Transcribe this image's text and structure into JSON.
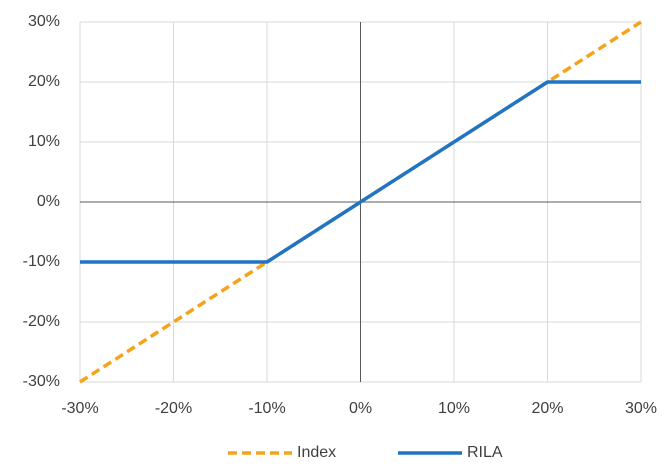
{
  "chart_data": {
    "type": "line",
    "x": [
      -30,
      -10,
      0,
      20,
      30
    ],
    "series": [
      {
        "name": "Index",
        "color": "#f5a31a",
        "dash": true,
        "values": [
          -30,
          -10,
          0,
          20,
          30
        ]
      },
      {
        "name": "RILA",
        "color": "#1f74c4",
        "dash": false,
        "values": [
          -10,
          -10,
          0,
          20,
          20
        ]
      }
    ],
    "xlim": [
      -30,
      30
    ],
    "ylim": [
      -30,
      30
    ],
    "xticks": [
      {
        "value": -30,
        "label": "-30%"
      },
      {
        "value": -20,
        "label": "-20%"
      },
      {
        "value": -10,
        "label": "-10%"
      },
      {
        "value": 0,
        "label": "0%"
      },
      {
        "value": 10,
        "label": "10%"
      },
      {
        "value": 20,
        "label": "20%"
      },
      {
        "value": 30,
        "label": "30%"
      }
    ],
    "yticks": [
      {
        "value": -30,
        "label": "-30%"
      },
      {
        "value": -20,
        "label": "-20%"
      },
      {
        "value": -10,
        "label": "-10%"
      },
      {
        "value": 0,
        "label": "0%"
      },
      {
        "value": 10,
        "label": "10%"
      },
      {
        "value": 20,
        "label": "20%"
      },
      {
        "value": 30,
        "label": "30%"
      }
    ],
    "grid": true,
    "legend": "bottom"
  }
}
